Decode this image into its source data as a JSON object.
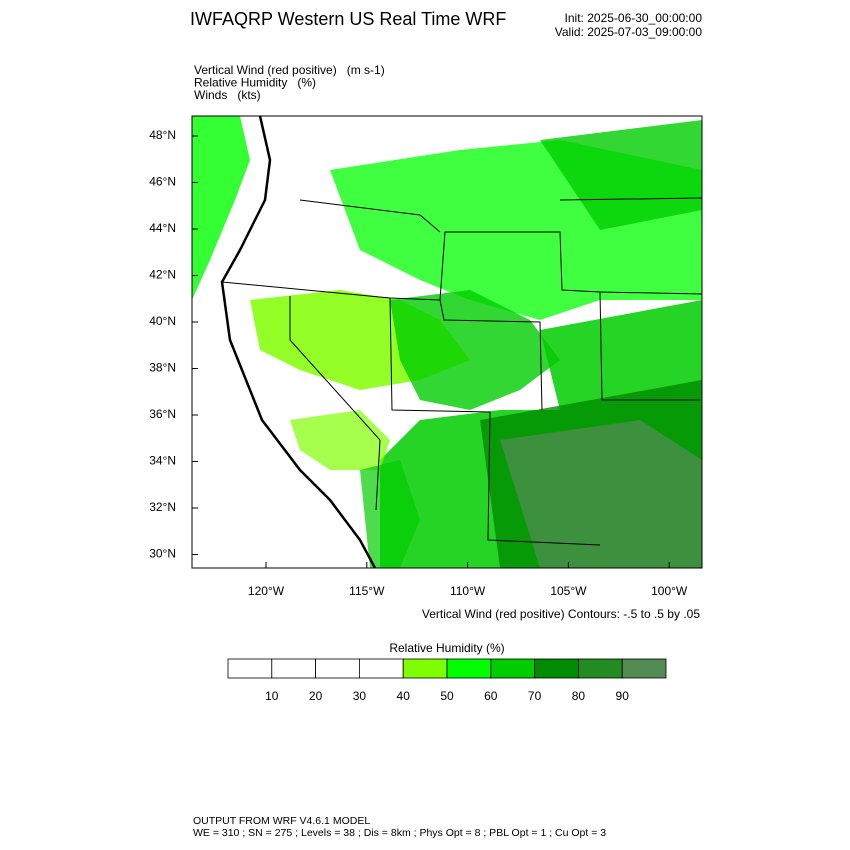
{
  "header": {
    "title": "IWFAQRP Western US Real Time WRF",
    "init": "Init: 2025-06-30_00:00:00",
    "valid": "Valid: 2025-07-03_09:00:00"
  },
  "fields": [
    {
      "name": "Vertical Wind (red positive)",
      "unit": "(m s-1)"
    },
    {
      "name": "Relative Humidity",
      "unit": "(%)"
    },
    {
      "name": "Winds",
      "unit": "(kts)"
    }
  ],
  "map": {
    "lat_labels": [
      "48°N",
      "46°N",
      "44°N",
      "42°N",
      "40°N",
      "38°N",
      "36°N",
      "34°N",
      "32°N",
      "30°N"
    ],
    "lon_labels": [
      "120°W",
      "115°W",
      "110°W",
      "105°W",
      "100°W"
    ],
    "contour_note": "Vertical Wind (red positive) Contours: -.5 to .5 by .05"
  },
  "colorbar": {
    "title": "Relative Humidity  (%)",
    "ticks": [
      10,
      20,
      30,
      40,
      50,
      60,
      70,
      80,
      90
    ],
    "colors": [
      "#ffffff",
      "#ffffff",
      "#ffffff",
      "#ffffff",
      "#80ff00",
      "#00ff00",
      "#00cd00",
      "#008b00",
      "#228b22",
      "#548b54"
    ]
  },
  "footer": {
    "line1": "OUTPUT FROM WRF V4.6.1 MODEL",
    "line2": "WE = 310 ; SN = 275 ; Levels = 38 ; Dis = 8km ; Phys Opt = 8 ; PBL Opt = 1 ; Cu Opt = 3"
  }
}
